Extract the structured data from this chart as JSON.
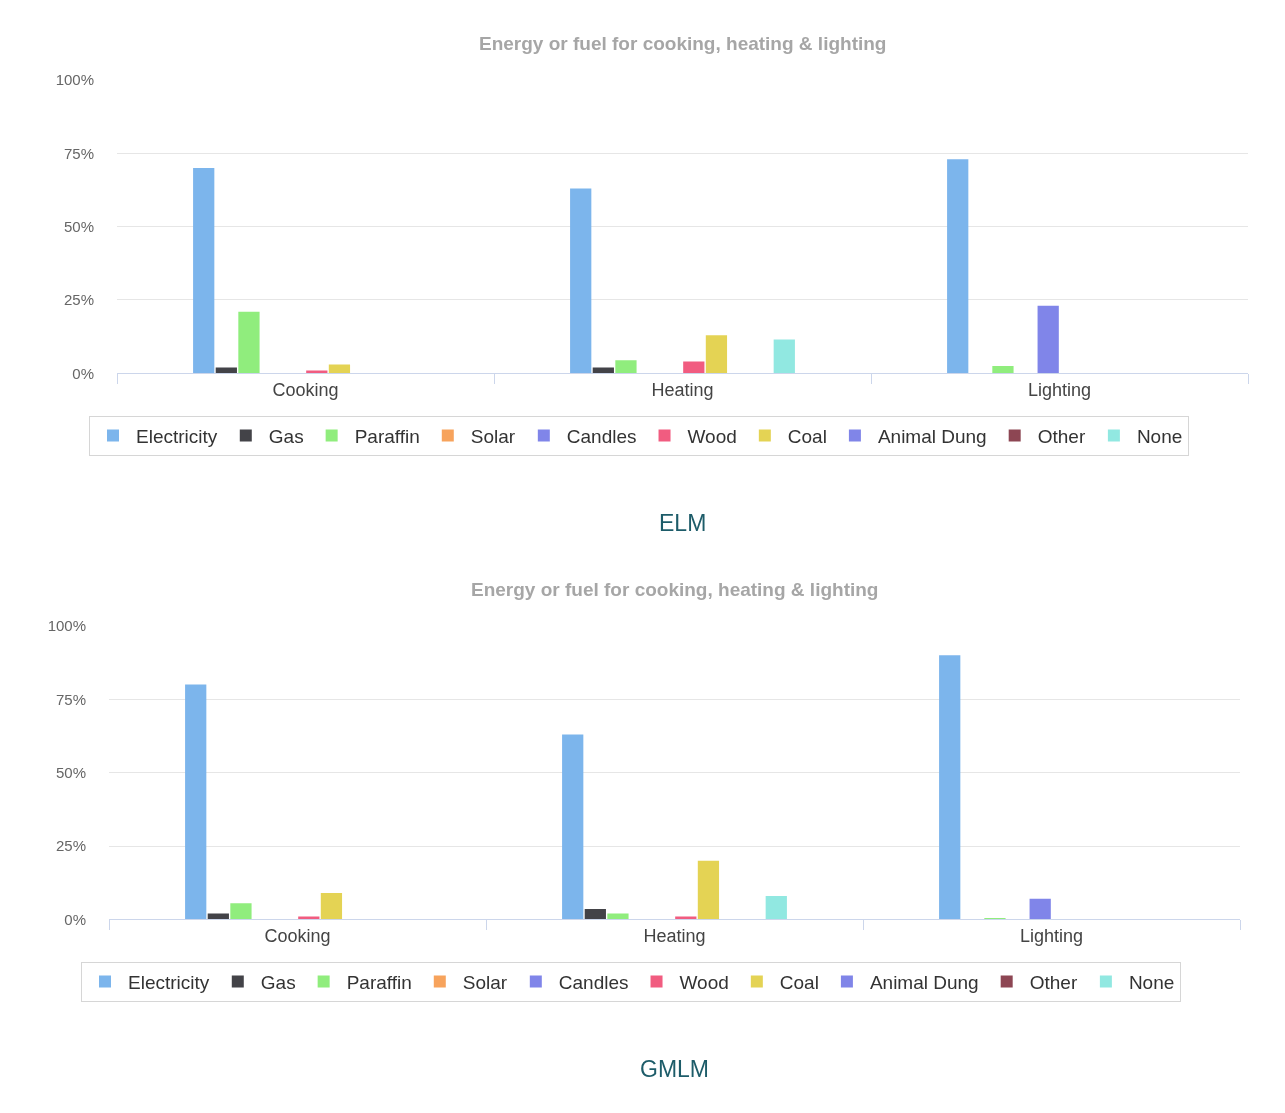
{
  "chart_data": [
    {
      "type": "bar",
      "title": "Energy or fuel for cooking, heating & lighting",
      "categories": [
        "Cooking",
        "Heating",
        "Lighting"
      ],
      "series": [
        {
          "name": "Electricity",
          "color": "#7cb5ec",
          "values": [
            70,
            63,
            73
          ]
        },
        {
          "name": "Gas",
          "color": "#434348",
          "values": [
            2,
            2,
            0
          ]
        },
        {
          "name": "Paraffin",
          "color": "#90ed7d",
          "values": [
            21,
            4.5,
            2.5
          ]
        },
        {
          "name": "Solar",
          "color": "#f7a35c",
          "values": [
            0,
            0,
            0
          ]
        },
        {
          "name": "Candles",
          "color": "#8085e9",
          "values": [
            0,
            0,
            23
          ]
        },
        {
          "name": "Wood",
          "color": "#f15c80",
          "values": [
            1,
            4,
            0
          ]
        },
        {
          "name": "Coal",
          "color": "#e4d354",
          "values": [
            3,
            13,
            0
          ]
        },
        {
          "name": "Animal Dung",
          "color": "#8085e8",
          "values": [
            0,
            0,
            0
          ]
        },
        {
          "name": "Other",
          "color": "#8d4653",
          "values": [
            0,
            0,
            0
          ]
        },
        {
          "name": "None",
          "color": "#91e8e1",
          "values": [
            0,
            11.5,
            0
          ]
        }
      ],
      "ylim": [
        0,
        100
      ],
      "yticks": [
        {
          "value": 0,
          "label": "0%"
        },
        {
          "value": 25,
          "label": "25%"
        },
        {
          "value": 50,
          "label": "50%"
        },
        {
          "value": 75,
          "label": "75%"
        },
        {
          "value": 100,
          "label": "100%"
        }
      ],
      "grid": "y",
      "legend": "bottom",
      "annotations": [
        "ELM"
      ]
    },
    {
      "type": "bar",
      "title": "Energy or fuel for cooking, heating & lighting",
      "categories": [
        "Cooking",
        "Heating",
        "Lighting"
      ],
      "series": [
        {
          "name": "Electricity",
          "color": "#7cb5ec",
          "values": [
            80,
            63,
            90
          ]
        },
        {
          "name": "Gas",
          "color": "#434348",
          "values": [
            2,
            3.5,
            0
          ]
        },
        {
          "name": "Paraffin",
          "color": "#90ed7d",
          "values": [
            5.5,
            2,
            0.5
          ]
        },
        {
          "name": "Solar",
          "color": "#f7a35c",
          "values": [
            0,
            0,
            0
          ]
        },
        {
          "name": "Candles",
          "color": "#8085e9",
          "values": [
            0,
            0,
            7
          ]
        },
        {
          "name": "Wood",
          "color": "#f15c80",
          "values": [
            1,
            1,
            0
          ]
        },
        {
          "name": "Coal",
          "color": "#e4d354",
          "values": [
            9,
            20,
            0
          ]
        },
        {
          "name": "Animal Dung",
          "color": "#8085e8",
          "values": [
            0,
            0,
            0
          ]
        },
        {
          "name": "Other",
          "color": "#8d4653",
          "values": [
            0,
            0,
            0
          ]
        },
        {
          "name": "None",
          "color": "#91e8e1",
          "values": [
            0,
            8,
            0
          ]
        }
      ],
      "ylim": [
        0,
        100
      ],
      "yticks": [
        {
          "value": 0,
          "label": "0%"
        },
        {
          "value": 25,
          "label": "25%"
        },
        {
          "value": 50,
          "label": "50%"
        },
        {
          "value": 75,
          "label": "75%"
        },
        {
          "value": 100,
          "label": "100%"
        }
      ],
      "grid": "y",
      "legend": "bottom",
      "annotations": [
        "GMLM"
      ]
    }
  ]
}
